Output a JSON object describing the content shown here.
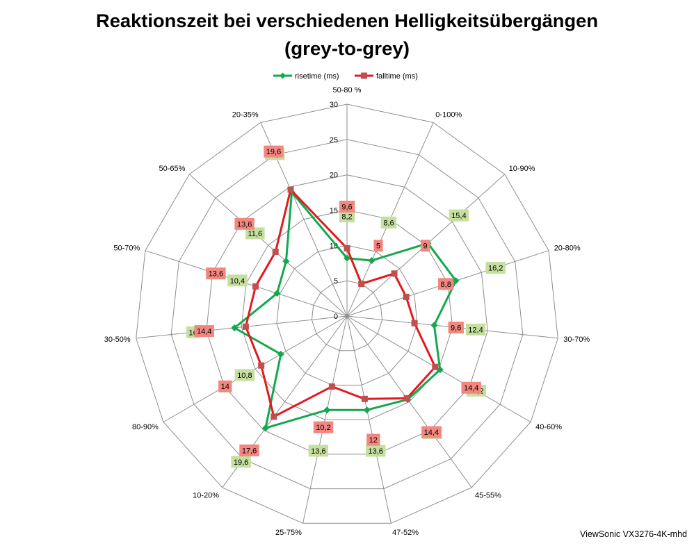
{
  "chart_data": {
    "type": "radar",
    "title": "Reaktionszeit bei verschiedenen Helligkeitsübergängen",
    "subtitle": "(grey-to-grey)",
    "categories": [
      "50-80 %",
      "0-100%",
      "10-90%",
      "20-80%",
      "30-70%",
      "40-60%",
      "45-55%",
      "47-52%",
      "25-75%",
      "10-20%",
      "80-90%",
      "30-50%",
      "50-70%",
      "50-65%",
      "20-35%"
    ],
    "series": [
      {
        "name": "risetime (ms)",
        "values": [
          8.2,
          8.6,
          15.4,
          16.2,
          12.4,
          15.2,
          14.6,
          13.6,
          13.6,
          19.6,
          10.8,
          16,
          10.4,
          11.6,
          19.2
        ],
        "labels": [
          "8,2",
          "8,6",
          "15,4",
          "16,2",
          "12,4",
          "15,2",
          "14,6",
          "13,6",
          "13,6",
          "19,6",
          "10,8",
          "16",
          "10,4",
          "11,6",
          "19,2"
        ],
        "color": "#12a84c",
        "marker": "diamond",
        "marker_color": "#12a84c",
        "label_color": "#c4df9e"
      },
      {
        "name": "falltime (ms)",
        "values": [
          9.6,
          5,
          9,
          8.8,
          9.6,
          14.4,
          14.4,
          12,
          10.2,
          17.6,
          14,
          14.4,
          13.6,
          13.6,
          19.6
        ],
        "labels": [
          "9,6",
          "5",
          "9",
          "8,8",
          "9,6",
          "14,4",
          "14,4",
          "12",
          "10,2",
          "17,6",
          "14",
          "14,4",
          "13,6",
          "13,6",
          "19,6"
        ],
        "color": "#e3191f",
        "marker": "square",
        "marker_color": "#c0504d",
        "label_color": "#f2877f"
      }
    ],
    "rlim": [
      0,
      30
    ],
    "ticks": [
      0,
      5,
      10,
      15,
      20,
      25,
      30
    ],
    "tick_labels": [
      "0",
      "5",
      "10",
      "15",
      "20",
      "25",
      "30"
    ],
    "grid": true,
    "legend": "top"
  },
  "caption": "ViewSonic VX3276-4K-mhd"
}
